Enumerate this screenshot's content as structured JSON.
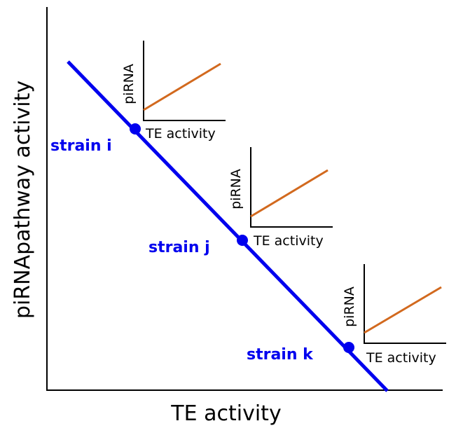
{
  "axes": {
    "x_label": "TE activity",
    "y_label": "piRNApathway activity"
  },
  "strains": [
    {
      "label": "strain i"
    },
    {
      "label": "strain j"
    },
    {
      "label": "strain k"
    }
  ],
  "insets": [
    {
      "x_label": "TE activity",
      "y_label": "piRNA"
    },
    {
      "x_label": "TE activity",
      "y_label": "piRNA"
    },
    {
      "x_label": "TE activity",
      "y_label": "piRNA"
    }
  ]
}
